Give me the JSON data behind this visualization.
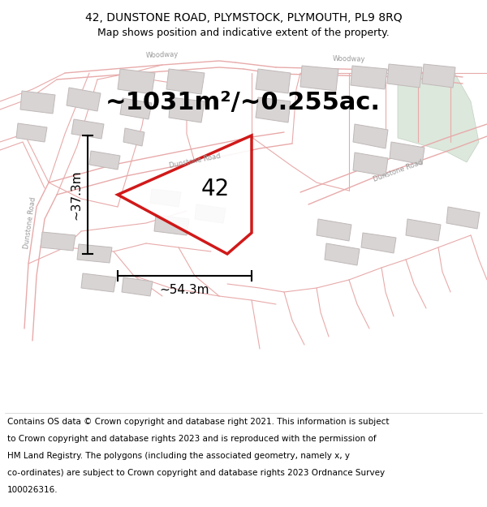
{
  "title_line1": "42, DUNSTONE ROAD, PLYMSTOCK, PLYMOUTH, PL9 8RQ",
  "title_line2": "Map shows position and indicative extent of the property.",
  "area_label": "~1031m²/~0.255ac.",
  "number_label": "42",
  "width_label": "~54.3m",
  "height_label": "~37.3m",
  "footer_lines": [
    "Contains OS data © Crown copyright and database right 2021. This information is subject",
    "to Crown copyright and database rights 2023 and is reproduced with the permission of",
    "HM Land Registry. The polygons (including the associated geometry, namely x, y",
    "co-ordinates) are subject to Crown copyright and database rights 2023 Ordnance Survey",
    "100026316."
  ],
  "map_bg": "#f7f2f2",
  "road_line_color": "#e8aaaa",
  "building_fill": "#d8d4d4",
  "building_edge": "#c0b8b8",
  "plot_edge_color": "#cc0000",
  "green_fill": "#dce8dc",
  "green_edge": "#c0d0c0",
  "dim_line_color": "#000000",
  "road_label_color": "#999999",
  "title_fontsize": 10,
  "subtitle_fontsize": 9,
  "area_fontsize": 22,
  "number_fontsize": 20,
  "dim_fontsize": 11,
  "footer_fontsize": 7.5,
  "road_label_fontsize": 6
}
